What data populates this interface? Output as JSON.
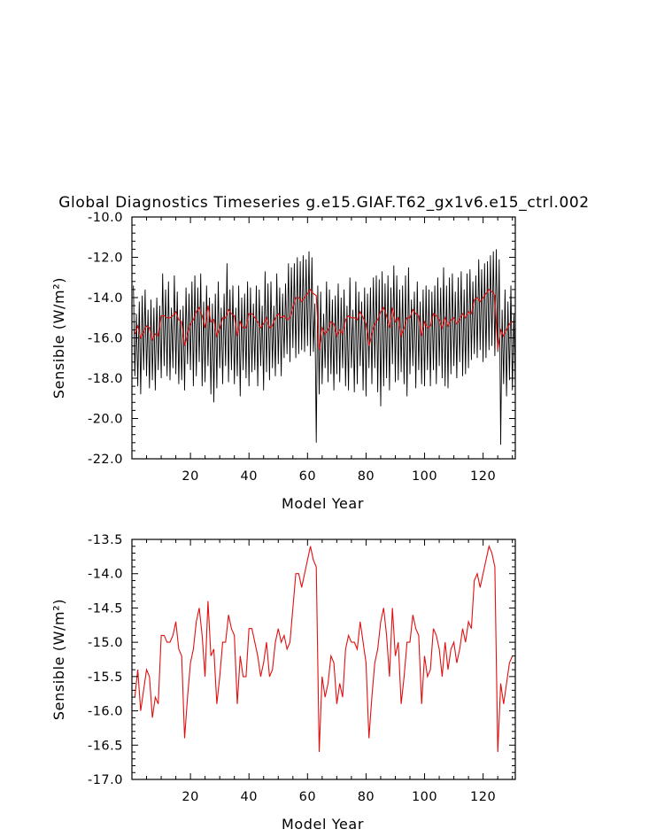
{
  "title": "Global Diagnostics Timeseries g.e15.GIAF.T62_gx1v6.e15_ctrl.002",
  "colors": {
    "monthly": "#000000",
    "annual": "#e01010",
    "axes": "#000000"
  },
  "chart_data": [
    {
      "type": "line",
      "xlabel": "Model Year",
      "ylabel": "Sensible (W/m²)",
      "xlim": [
        0,
        131
      ],
      "ylim": [
        -22.0,
        -10.0
      ],
      "x_ticks": [
        20,
        40,
        60,
        80,
        100,
        120
      ],
      "x_tick_labels": [
        "20",
        "40",
        "60",
        "80",
        "100",
        "120"
      ],
      "y_ticks": [
        -22.0,
        -20.0,
        -18.0,
        -16.0,
        -14.0,
        -12.0,
        -10.0
      ],
      "y_tick_labels": [
        "-22.0",
        "-20.0",
        "-18.0",
        "-16.0",
        "-14.0",
        "-12.0",
        "-10.0"
      ],
      "series": [
        {
          "name": "",
          "color": "#000000",
          "monthly_peak": [
            -13.4,
            -14.8,
            -14.2,
            -13.9,
            -13.6,
            -14.6,
            -14.1,
            -14.5,
            -14.0,
            -14.4,
            -12.8,
            -13.6,
            -13.2,
            -14.5,
            -12.9,
            -13.7,
            -14.6,
            -14.4,
            -13.5,
            -13.8,
            -13.2,
            -12.9,
            -13.5,
            -12.8,
            -14.2,
            -13.4,
            -14.0,
            -14.3,
            -13.8,
            -13.2,
            -14.5,
            -13.8,
            -12.3,
            -13.6,
            -13.4,
            -14.5,
            -13.4,
            -14.0,
            -13.8,
            -13.2,
            -13.5,
            -14.3,
            -13.4,
            -13.6,
            -14.4,
            -12.7,
            -13.3,
            -13.2,
            -14.4,
            -12.8,
            -13.5,
            -13.8,
            -13.3,
            -12.3,
            -12.5,
            -12.3,
            -12.0,
            -12.2,
            -11.9,
            -12.1,
            -11.7,
            -12.0,
            -14.3,
            -13.4,
            -13.7,
            -14.8,
            -13.2,
            -13.6,
            -14.1,
            -13.9,
            -13.3,
            -14.0,
            -13.6,
            -14.4,
            -13.0,
            -14.6,
            -13.2,
            -13.7,
            -14.2,
            -13.5,
            -13.8,
            -13.5,
            -13.0,
            -12.9,
            -13.1,
            -12.7,
            -13.3,
            -12.9,
            -13.5,
            -12.4,
            -12.9,
            -13.6,
            -13.4,
            -12.9,
            -12.5,
            -14.1,
            -13.7,
            -13.2,
            -14.2,
            -13.6,
            -13.4,
            -13.6,
            -13.7,
            -13.4,
            -13.0,
            -13.5,
            -12.5,
            -13.4,
            -13.0,
            -12.8,
            -13.7,
            -13.0,
            -12.7,
            -13.6,
            -12.8,
            -12.6,
            -13.2,
            -12.9,
            -12.1,
            -12.6,
            -12.3,
            -12.2,
            -11.9,
            -11.7,
            -11.6,
            -12.1,
            -14.6,
            -13.6,
            -14.2,
            -13.4,
            -14.8
          ],
          "monthly_trough": [
            -17.9,
            -18.4,
            -18.8,
            -17.6,
            -17.9,
            -18.5,
            -18.1,
            -18.6,
            -17.6,
            -18.0,
            -17.4,
            -17.9,
            -18.1,
            -17.5,
            -17.8,
            -18.3,
            -18.1,
            -18.6,
            -17.3,
            -17.6,
            -18.4,
            -17.9,
            -17.2,
            -18.4,
            -18.2,
            -17.4,
            -18.8,
            -19.2,
            -18.5,
            -17.5,
            -18.3,
            -17.4,
            -18.2,
            -17.6,
            -18.3,
            -17.9,
            -18.9,
            -17.6,
            -18.0,
            -18.4,
            -17.7,
            -17.6,
            -18.4,
            -17.4,
            -18.6,
            -17.7,
            -18.1,
            -17.5,
            -17.9,
            -17.3,
            -17.9,
            -17.0,
            -16.8,
            -17.2,
            -16.5,
            -17.0,
            -16.8,
            -16.6,
            -16.7,
            -16.4,
            -16.9,
            -16.7,
            -21.2,
            -18.8,
            -18.3,
            -17.5,
            -18.2,
            -17.8,
            -18.6,
            -17.8,
            -18.2,
            -17.5,
            -18.4,
            -18.6,
            -17.5,
            -18.7,
            -18.3,
            -17.4,
            -18.6,
            -18.9,
            -17.5,
            -18.3,
            -17.5,
            -18.7,
            -19.4,
            -18.4,
            -18.0,
            -18.6,
            -17.3,
            -18.2,
            -18.1,
            -17.7,
            -18.3,
            -18.9,
            -17.8,
            -17.4,
            -18.5,
            -17.6,
            -18.3,
            -18.4,
            -17.6,
            -18.4,
            -17.6,
            -18.3,
            -17.4,
            -18.0,
            -18.4,
            -18.5,
            -17.8,
            -17.4,
            -18.0,
            -17.2,
            -17.9,
            -17.8,
            -17.5,
            -17.1,
            -16.8,
            -17.0,
            -16.6,
            -17.2,
            -17.0,
            -16.6,
            -16.4,
            -16.9,
            -16.7,
            -21.3,
            -18.3,
            -18.9,
            -18.1,
            -18.6,
            -18.4
          ]
        },
        {
          "name": "",
          "color": "#e01010",
          "x": [
            1,
            2,
            3,
            4,
            5,
            6,
            7,
            8,
            9,
            10,
            11,
            12,
            13,
            14,
            15,
            16,
            17,
            18,
            19,
            20,
            21,
            22,
            23,
            24,
            25,
            26,
            27,
            28,
            29,
            30,
            31,
            32,
            33,
            34,
            35,
            36,
            37,
            38,
            39,
            40,
            41,
            42,
            43,
            44,
            45,
            46,
            47,
            48,
            49,
            50,
            51,
            52,
            53,
            54,
            55,
            56,
            57,
            58,
            59,
            60,
            61,
            62,
            63,
            64,
            65,
            66,
            67,
            68,
            69,
            70,
            71,
            72,
            73,
            74,
            75,
            76,
            77,
            78,
            79,
            80,
            81,
            82,
            83,
            84,
            85,
            86,
            87,
            88,
            89,
            90,
            91,
            92,
            93,
            94,
            95,
            96,
            97,
            98,
            99,
            100,
            101,
            102,
            103,
            104,
            105,
            106,
            107,
            108,
            109,
            110,
            111,
            112,
            113,
            114,
            115,
            116,
            117,
            118,
            119,
            120,
            121,
            122,
            123,
            124,
            125,
            126,
            127,
            128,
            129,
            130
          ],
          "values": [
            -15.8,
            -15.4,
            -16.0,
            -15.7,
            -15.4,
            -15.5,
            -16.1,
            -15.8,
            -15.9,
            -14.9,
            -14.9,
            -15.0,
            -15.0,
            -14.9,
            -14.7,
            -15.1,
            -15.2,
            -16.4,
            -15.8,
            -15.3,
            -15.1,
            -14.7,
            -14.5,
            -14.9,
            -15.5,
            -14.4,
            -15.2,
            -15.1,
            -15.9,
            -15.5,
            -15.0,
            -15.0,
            -14.6,
            -14.8,
            -14.9,
            -15.9,
            -15.2,
            -15.5,
            -15.5,
            -14.8,
            -14.8,
            -15.0,
            -15.2,
            -15.5,
            -15.3,
            -15.0,
            -15.5,
            -15.4,
            -15.0,
            -14.8,
            -15.0,
            -14.9,
            -15.1,
            -15.0,
            -14.5,
            -14.0,
            -14.0,
            -14.2,
            -14.0,
            -13.8,
            -13.6,
            -13.8,
            -13.9,
            -16.6,
            -15.5,
            -15.8,
            -15.6,
            -15.2,
            -15.3,
            -15.9,
            -15.6,
            -15.8,
            -15.1,
            -14.9,
            -15.0,
            -15.0,
            -15.1,
            -14.7,
            -15.0,
            -15.3,
            -16.4,
            -15.8,
            -15.3,
            -15.1,
            -14.7,
            -14.5,
            -14.9,
            -15.5,
            -14.5,
            -15.2,
            -15.0,
            -15.9,
            -15.5,
            -15.0,
            -15.0,
            -14.6,
            -14.8,
            -14.9,
            -15.9,
            -15.2,
            -15.5,
            -15.4,
            -14.8,
            -14.9,
            -15.1,
            -15.5,
            -15.0,
            -15.4,
            -15.1,
            -15.0,
            -15.3,
            -15.1,
            -14.8,
            -15.0,
            -14.7,
            -14.8,
            -14.1,
            -14.0,
            -14.2,
            -14.0,
            -13.8,
            -13.6,
            -13.7,
            -13.9,
            -16.6,
            -15.6,
            -15.9,
            -15.6,
            -15.3,
            -15.2
          ]
        }
      ]
    },
    {
      "type": "line",
      "xlabel": "Model Year",
      "ylabel": "Sensible (W/m²)",
      "xlim": [
        0,
        131
      ],
      "ylim": [
        -17.0,
        -13.5
      ],
      "x_ticks": [
        20,
        40,
        60,
        80,
        100,
        120
      ],
      "x_tick_labels": [
        "20",
        "40",
        "60",
        "80",
        "100",
        "120"
      ],
      "y_ticks": [
        -17.0,
        -16.5,
        -16.0,
        -15.5,
        -15.0,
        -14.5,
        -14.0,
        -13.5
      ],
      "y_tick_labels": [
        "-17.0",
        "-16.5",
        "-16.0",
        "-15.5",
        "-15.0",
        "-14.5",
        "-14.0",
        "-13.5"
      ],
      "series": [
        {
          "name": "",
          "color": "#e01010",
          "x": [
            1,
            2,
            3,
            4,
            5,
            6,
            7,
            8,
            9,
            10,
            11,
            12,
            13,
            14,
            15,
            16,
            17,
            18,
            19,
            20,
            21,
            22,
            23,
            24,
            25,
            26,
            27,
            28,
            29,
            30,
            31,
            32,
            33,
            34,
            35,
            36,
            37,
            38,
            39,
            40,
            41,
            42,
            43,
            44,
            45,
            46,
            47,
            48,
            49,
            50,
            51,
            52,
            53,
            54,
            55,
            56,
            57,
            58,
            59,
            60,
            61,
            62,
            63,
            64,
            65,
            66,
            67,
            68,
            69,
            70,
            71,
            72,
            73,
            74,
            75,
            76,
            77,
            78,
            79,
            80,
            81,
            82,
            83,
            84,
            85,
            86,
            87,
            88,
            89,
            90,
            91,
            92,
            93,
            94,
            95,
            96,
            97,
            98,
            99,
            100,
            101,
            102,
            103,
            104,
            105,
            106,
            107,
            108,
            109,
            110,
            111,
            112,
            113,
            114,
            115,
            116,
            117,
            118,
            119,
            120,
            121,
            122,
            123,
            124,
            125,
            126,
            127,
            128,
            129,
            130
          ],
          "values": [
            -15.8,
            -15.4,
            -16.0,
            -15.7,
            -15.4,
            -15.5,
            -16.1,
            -15.8,
            -15.9,
            -14.9,
            -14.9,
            -15.0,
            -15.0,
            -14.9,
            -14.7,
            -15.1,
            -15.2,
            -16.4,
            -15.8,
            -15.3,
            -15.1,
            -14.7,
            -14.5,
            -14.9,
            -15.5,
            -14.4,
            -15.2,
            -15.1,
            -15.9,
            -15.5,
            -15.0,
            -15.0,
            -14.6,
            -14.8,
            -14.9,
            -15.9,
            -15.2,
            -15.5,
            -15.5,
            -14.8,
            -14.8,
            -15.0,
            -15.2,
            -15.5,
            -15.3,
            -15.0,
            -15.5,
            -15.4,
            -15.0,
            -14.8,
            -15.0,
            -14.9,
            -15.1,
            -15.0,
            -14.5,
            -14.0,
            -14.0,
            -14.2,
            -14.0,
            -13.8,
            -13.6,
            -13.8,
            -13.9,
            -16.6,
            -15.5,
            -15.8,
            -15.6,
            -15.2,
            -15.3,
            -15.9,
            -15.6,
            -15.8,
            -15.1,
            -14.9,
            -15.0,
            -15.0,
            -15.1,
            -14.7,
            -15.0,
            -15.3,
            -16.4,
            -15.8,
            -15.3,
            -15.1,
            -14.7,
            -14.5,
            -14.9,
            -15.5,
            -14.5,
            -15.2,
            -15.0,
            -15.9,
            -15.5,
            -15.0,
            -15.0,
            -14.6,
            -14.8,
            -14.9,
            -15.9,
            -15.2,
            -15.5,
            -15.4,
            -14.8,
            -14.9,
            -15.1,
            -15.5,
            -15.0,
            -15.4,
            -15.1,
            -15.0,
            -15.3,
            -15.1,
            -14.8,
            -15.0,
            -14.7,
            -14.8,
            -14.1,
            -14.0,
            -14.2,
            -14.0,
            -13.8,
            -13.6,
            -13.7,
            -13.9,
            -16.6,
            -15.6,
            -15.9,
            -15.6,
            -15.3,
            -15.2
          ]
        }
      ]
    }
  ]
}
